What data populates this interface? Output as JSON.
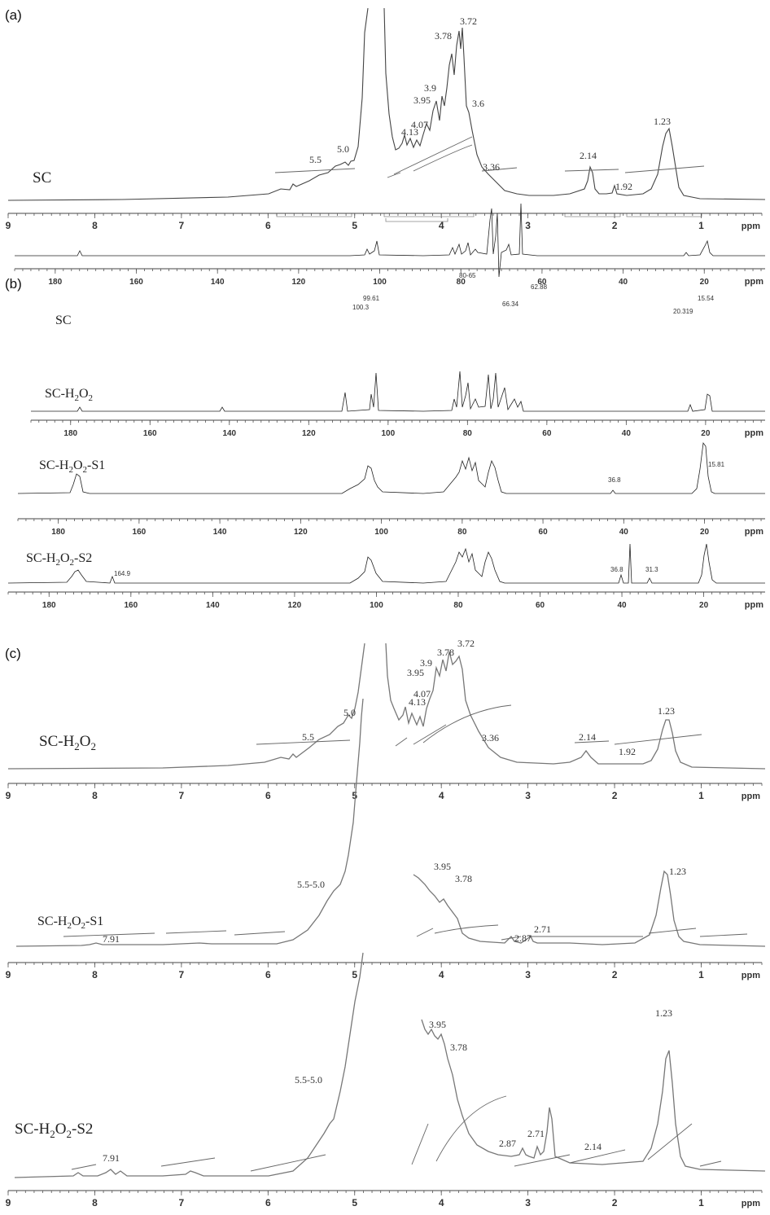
{
  "panels": {
    "a": "(a)",
    "b": "(b)",
    "c": "(c)"
  },
  "x_unit": "ppm",
  "chart_data": [
    {
      "panel": "(a)",
      "type": "line",
      "nucleus": "1H",
      "sample": "SC",
      "x_ticks": [
        9,
        8,
        7,
        6,
        5,
        4,
        3,
        2,
        1
      ],
      "xlim": [
        9,
        0.3
      ],
      "xlabel": "ppm",
      "peak_labels": [
        "5.5",
        "5.0",
        "4.13",
        "4.07",
        "3.95",
        "3.9",
        "3.78",
        "3.72",
        "3.6",
        "3.36",
        "2.14",
        "1.92",
        "1.23"
      ]
    },
    {
      "panel": "(b)",
      "type": "line",
      "nucleus": "13C",
      "x_ticks": [
        180,
        160,
        140,
        120,
        100,
        80,
        60,
        40,
        20
      ],
      "xlim": [
        190,
        5
      ],
      "xlabel": "ppm",
      "series": [
        {
          "name": "SC",
          "peak_labels": [
            "100.3",
            "99.61",
            "80-65",
            "66.34",
            "62.88",
            "20.319",
            "15.54"
          ]
        },
        {
          "name": "SC-H₂O₂",
          "peak_labels": []
        },
        {
          "name": "SC-H₂O₂-S1",
          "peak_labels": [
            "36.8",
            "15.81"
          ]
        },
        {
          "name": "SC-H₂O₂-S2",
          "peak_labels": [
            "164.9",
            "36.8",
            "31.3"
          ]
        }
      ]
    },
    {
      "panel": "(c)",
      "type": "line",
      "nucleus": "1H",
      "x_ticks": [
        9,
        8,
        7,
        6,
        5,
        4,
        3,
        2,
        1
      ],
      "xlim": [
        9,
        0.3
      ],
      "xlabel": "ppm",
      "series": [
        {
          "name": "SC-H₂O₂",
          "peak_labels": [
            "5.5",
            "5.0",
            "4.13",
            "4.07",
            "3.95",
            "3.9",
            "3.78",
            "3.72",
            "3.36",
            "2.14",
            "1.92",
            "1.23"
          ]
        },
        {
          "name": "SC-H₂O₂-S1",
          "peak_labels": [
            "7.91",
            "5.5-5.0",
            "3.95",
            "3.78",
            "2.87",
            "2.71",
            "1.23"
          ]
        },
        {
          "name": "SC-H₂O₂-S2",
          "peak_labels": [
            "7.91",
            "5.5-5.0",
            "3.95",
            "3.78",
            "2.87",
            "2.71",
            "2.14",
            "1.23"
          ]
        }
      ]
    }
  ]
}
